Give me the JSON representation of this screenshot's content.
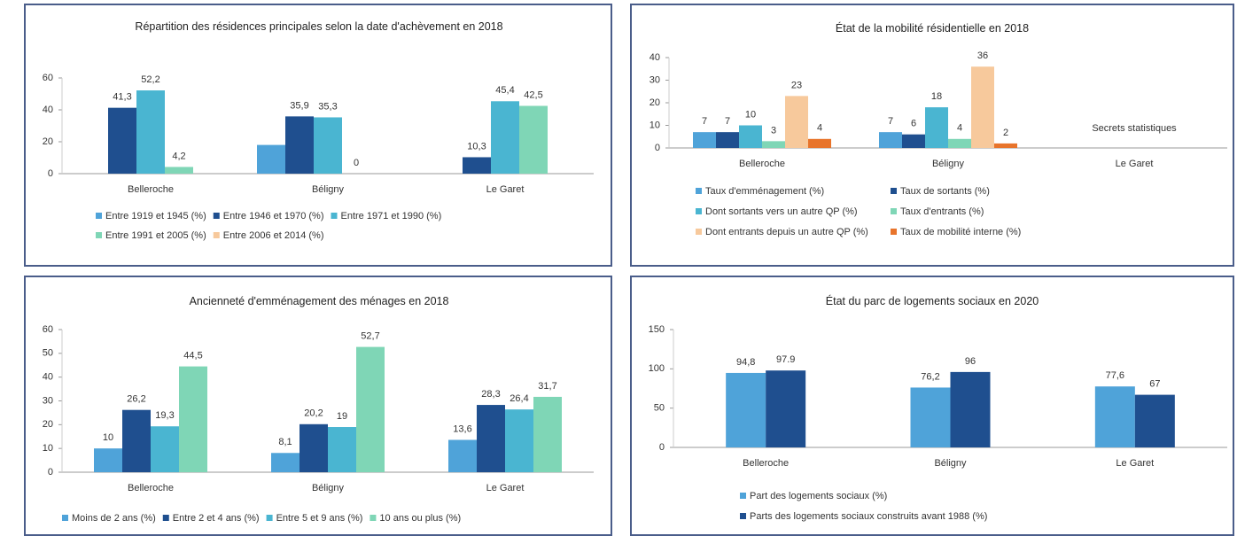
{
  "chart_data": [
    {
      "type": "bar",
      "title": "Répartition des résidences principales selon la date d'achèvement en 2018",
      "categories": [
        "Belleroche",
        "Béligny",
        "Le Garet"
      ],
      "series": [
        {
          "name": "Entre 1919 et 1945 (%)",
          "color": "#4fa3d9",
          "values": [
            null,
            18,
            null
          ],
          "value_labels": [
            null,
            null,
            null
          ]
        },
        {
          "name": "Entre 1946 et 1970 (%)",
          "color": "#1f4f8f",
          "values": [
            41.3,
            35.9,
            10.3
          ],
          "value_labels": [
            "41,3",
            "35,9",
            "10,3"
          ]
        },
        {
          "name": "Entre 1971 et 1990 (%)",
          "color": "#4ab5d1",
          "values": [
            52.2,
            35.3,
            45.4
          ],
          "value_labels": [
            "52,2",
            "35,3",
            "45,4"
          ]
        },
        {
          "name": "Entre 1991 et 2005 (%)",
          "color": "#7fd6b6",
          "values": [
            4.2,
            0,
            42.5
          ],
          "value_labels": [
            "4,2",
            "0",
            "42,5"
          ]
        },
        {
          "name": "Entre 2006 et 2014 (%)",
          "color": "#f7c99c",
          "values": [
            null,
            null,
            null
          ]
        }
      ],
      "ylim": [
        0,
        60
      ],
      "yticks": [
        0,
        20,
        40,
        60
      ]
    },
    {
      "type": "bar",
      "title": "État de la mobilité résidentielle en 2018",
      "categories": [
        "Belleroche",
        "Béligny",
        "Le Garet"
      ],
      "series": [
        {
          "name": "Taux d'emménagement (%)",
          "color": "#4fa3d9",
          "values": [
            7,
            7,
            null
          ]
        },
        {
          "name": "Taux de sortants (%)",
          "color": "#1f4f8f",
          "values": [
            7,
            6,
            null
          ]
        },
        {
          "name": "Dont sortants vers un autre QP (%)",
          "color": "#4ab5d1",
          "values": [
            10,
            18,
            null
          ]
        },
        {
          "name": "Taux d'entrants (%)",
          "color": "#7fd6b6",
          "values": [
            3,
            4,
            null
          ]
        },
        {
          "name": "Dont entrants depuis un autre QP (%)",
          "color": "#f7c99c",
          "values": [
            23,
            36,
            null
          ]
        },
        {
          "name": "Taux de mobilité interne (%)",
          "color": "#e8742b",
          "values": [
            4,
            2,
            null
          ]
        }
      ],
      "annotation": "Secrets statistiques",
      "ylim": [
        0,
        40
      ],
      "yticks": [
        0,
        10,
        20,
        30,
        40
      ]
    },
    {
      "type": "bar",
      "title": "Ancienneté d'emménagement des ménages en 2018",
      "categories": [
        "Belleroche",
        "Béligny",
        "Le Garet"
      ],
      "series": [
        {
          "name": "Moins de 2 ans (%)",
          "color": "#4fa3d9",
          "values": [
            10,
            8.1,
            13.6
          ],
          "value_labels": [
            "10",
            "8,1",
            "13,6"
          ]
        },
        {
          "name": "Entre 2 et 4 ans (%)",
          "color": "#1f4f8f",
          "values": [
            26.2,
            20.2,
            28.3
          ],
          "value_labels": [
            "26,2",
            "20,2",
            "28,3"
          ]
        },
        {
          "name": "Entre 5 et 9 ans (%)",
          "color": "#4ab5d1",
          "values": [
            19.3,
            19,
            26.4
          ],
          "value_labels": [
            "19,3",
            "19",
            "26,4"
          ]
        },
        {
          "name": "10 ans ou plus (%)",
          "color": "#7fd6b6",
          "values": [
            44.5,
            52.7,
            31.7
          ],
          "value_labels": [
            "44,5",
            "52,7",
            "31,7"
          ]
        }
      ],
      "ylim": [
        0,
        60
      ],
      "yticks": [
        0,
        10,
        20,
        30,
        40,
        50,
        60
      ]
    },
    {
      "type": "bar",
      "title": "État du parc de logements sociaux en 2020",
      "categories": [
        "Belleroche",
        "Béligny",
        "Le Garet"
      ],
      "series": [
        {
          "name": "Part des logements sociaux (%)",
          "color": "#4fa3d9",
          "values": [
            94.8,
            76.2,
            77.6
          ],
          "value_labels": [
            "94,8",
            "76,2",
            "77,6"
          ]
        },
        {
          "name": "Parts des logements sociaux construits avant 1988 (%)",
          "color": "#1f4f8f",
          "values": [
            97.9,
            96,
            67
          ]
        }
      ],
      "ylim": [
        0,
        150
      ],
      "yticks": [
        0,
        50,
        100,
        150
      ]
    }
  ]
}
